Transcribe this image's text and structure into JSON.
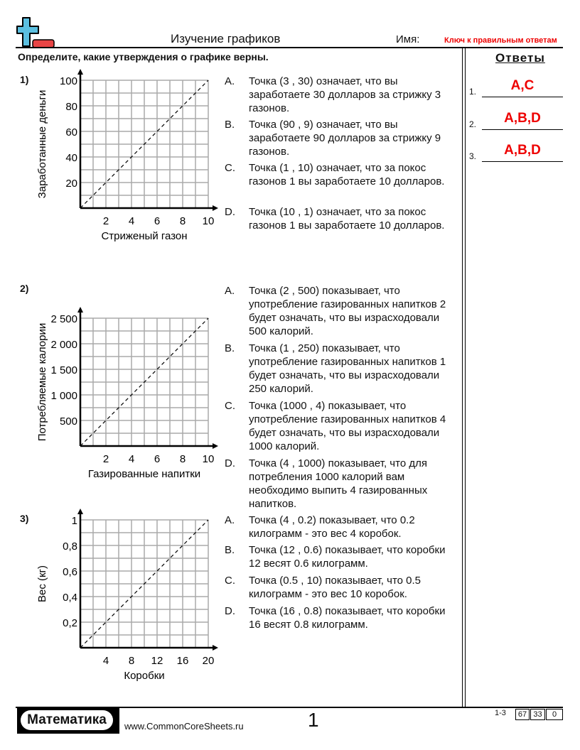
{
  "header": {
    "title": "Изучение графиков",
    "name_label": "Имя:",
    "answer_key": "Ключ к правильным ответам",
    "instructions": "Определите, какие утверждения о графике верны.",
    "answers_heading": "Ответы"
  },
  "answers": [
    {
      "num": "1.",
      "value": "A,C"
    },
    {
      "num": "2.",
      "value": "A,B,D"
    },
    {
      "num": "3.",
      "value": "A,B,D"
    }
  ],
  "questions": [
    {
      "num": "1)",
      "statements": [
        {
          "label": "A.",
          "text": "Точка (3 , 30) означает, что вы заработаете 30 долларов за стрижку 3 газонов."
        },
        {
          "label": "B.",
          "text": "Точка (90 , 9) означает, что вы заработаете 90 долларов за стрижку 9 газонов."
        },
        {
          "label": "C.",
          "text": "Точка (1 , 10) означает, что за покос газонов 1 вы заработаете 10 долларов."
        },
        {
          "label": "D.",
          "text": "Точка (10 , 1) означает, что за покос газонов 1 вы заработаете 10 долларов."
        }
      ]
    },
    {
      "num": "2)",
      "statements": [
        {
          "label": "A.",
          "text": "Точка (2 , 500) показывает, что употребление газированных напитков 2 будет означать, что вы израсходовали 500 калорий."
        },
        {
          "label": "B.",
          "text": "Точка (1 , 250) показывает, что употребление газированных напитков 1 будет означать, что вы израсходовали 250 калорий."
        },
        {
          "label": "C.",
          "text": "Точка (1000 , 4) показывает, что употребление газированных напитков 4 будет означать, что вы израсходовали 1000 калорий."
        },
        {
          "label": "D.",
          "text": "Точка (4 , 1000) показывает, что для потребления 1000 калорий вам необходимо выпить 4 газированных напитков."
        }
      ]
    },
    {
      "num": "3)",
      "statements": [
        {
          "label": "A.",
          "text": "Точка (4 , 0.2) показывает, что 0.2 килограмм - это вес 4 коробок."
        },
        {
          "label": "B.",
          "text": "Точка (12 , 0.6) показывает, что коробки 12 весят 0.6 килограмм."
        },
        {
          "label": "C.",
          "text": "Точка (0.5 , 10) показывает, что 0.5 килограмм - это вес 10 коробок."
        },
        {
          "label": "D.",
          "text": "Точка (16 , 0.8) показывает, что коробки 16 весят 0.8 килограмм."
        }
      ]
    }
  ],
  "chart_data": [
    {
      "type": "line",
      "xlabel": "Стриженый газон",
      "ylabel": "Заработанные деньги",
      "xlim": [
        0,
        10
      ],
      "ylim": [
        0,
        100
      ],
      "xticks": [
        "2",
        "4",
        "6",
        "8",
        "10"
      ],
      "yticks": [
        "20",
        "40",
        "60",
        "80",
        "100"
      ],
      "x": [
        0,
        10
      ],
      "y": [
        0,
        100
      ],
      "grid": true,
      "line_style": "dashed"
    },
    {
      "type": "line",
      "xlabel": "Газированные напитки",
      "ylabel": "Потребляемые калории",
      "xlim": [
        0,
        10
      ],
      "ylim": [
        0,
        2500
      ],
      "xticks": [
        "2",
        "4",
        "6",
        "8",
        "10"
      ],
      "yticks": [
        "500",
        "1 000",
        "1 500",
        "2 000",
        "2 500"
      ],
      "x": [
        0,
        10
      ],
      "y": [
        0,
        2500
      ],
      "grid": true,
      "line_style": "dashed"
    },
    {
      "type": "line",
      "xlabel": "Коробки",
      "ylabel": "Вес (кг)",
      "xlim": [
        0,
        20
      ],
      "ylim": [
        0,
        1
      ],
      "xticks": [
        "4",
        "8",
        "12",
        "16",
        "20"
      ],
      "yticks": [
        "0,2",
        "0,4",
        "0,6",
        "0,8",
        "1"
      ],
      "x": [
        0,
        20
      ],
      "y": [
        0,
        1
      ],
      "grid": true,
      "line_style": "dashed"
    }
  ],
  "footer": {
    "brand": "Математика",
    "url": "www.CommonCoreSheets.ru",
    "page": "1",
    "range": "1-3",
    "scores": [
      "67",
      "33",
      "0"
    ]
  },
  "colors": {
    "logo_plus": "#5bbfe0",
    "logo_minus": "#e84545",
    "answer": "#ee0000"
  }
}
